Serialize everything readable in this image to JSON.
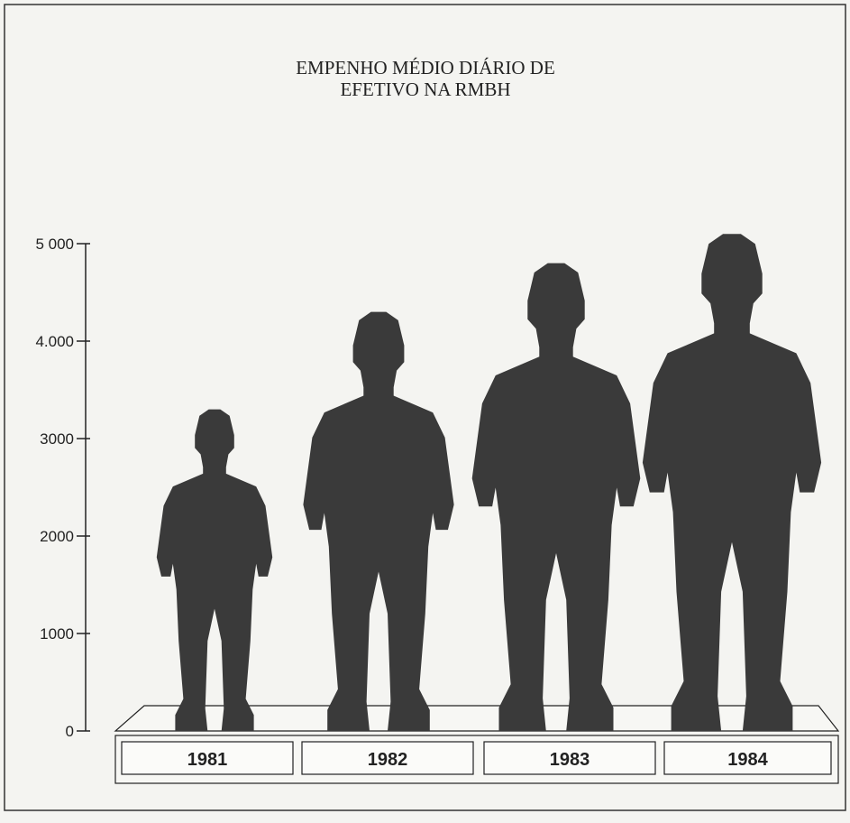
{
  "chart_data": {
    "type": "bar",
    "title": "EMPENHO MÉDIO DIÁRIO DE",
    "subtitle": "EFETIVO NA RMBH",
    "categories": [
      "1981",
      "1982",
      "1983",
      "1984"
    ],
    "values": [
      3300,
      4300,
      4800,
      5100
    ],
    "color": "#3a3a3a",
    "ylim": [
      0,
      5000
    ],
    "yticks": [
      0,
      {
        "value": 1000,
        "label": "1000"
      },
      {
        "value": 2000,
        "label": "2000"
      },
      {
        "value": 3000,
        "label": "3000"
      },
      {
        "value": 4000,
        "label": "4.000"
      },
      {
        "value": 5000,
        "label": "5 000"
      }
    ]
  }
}
